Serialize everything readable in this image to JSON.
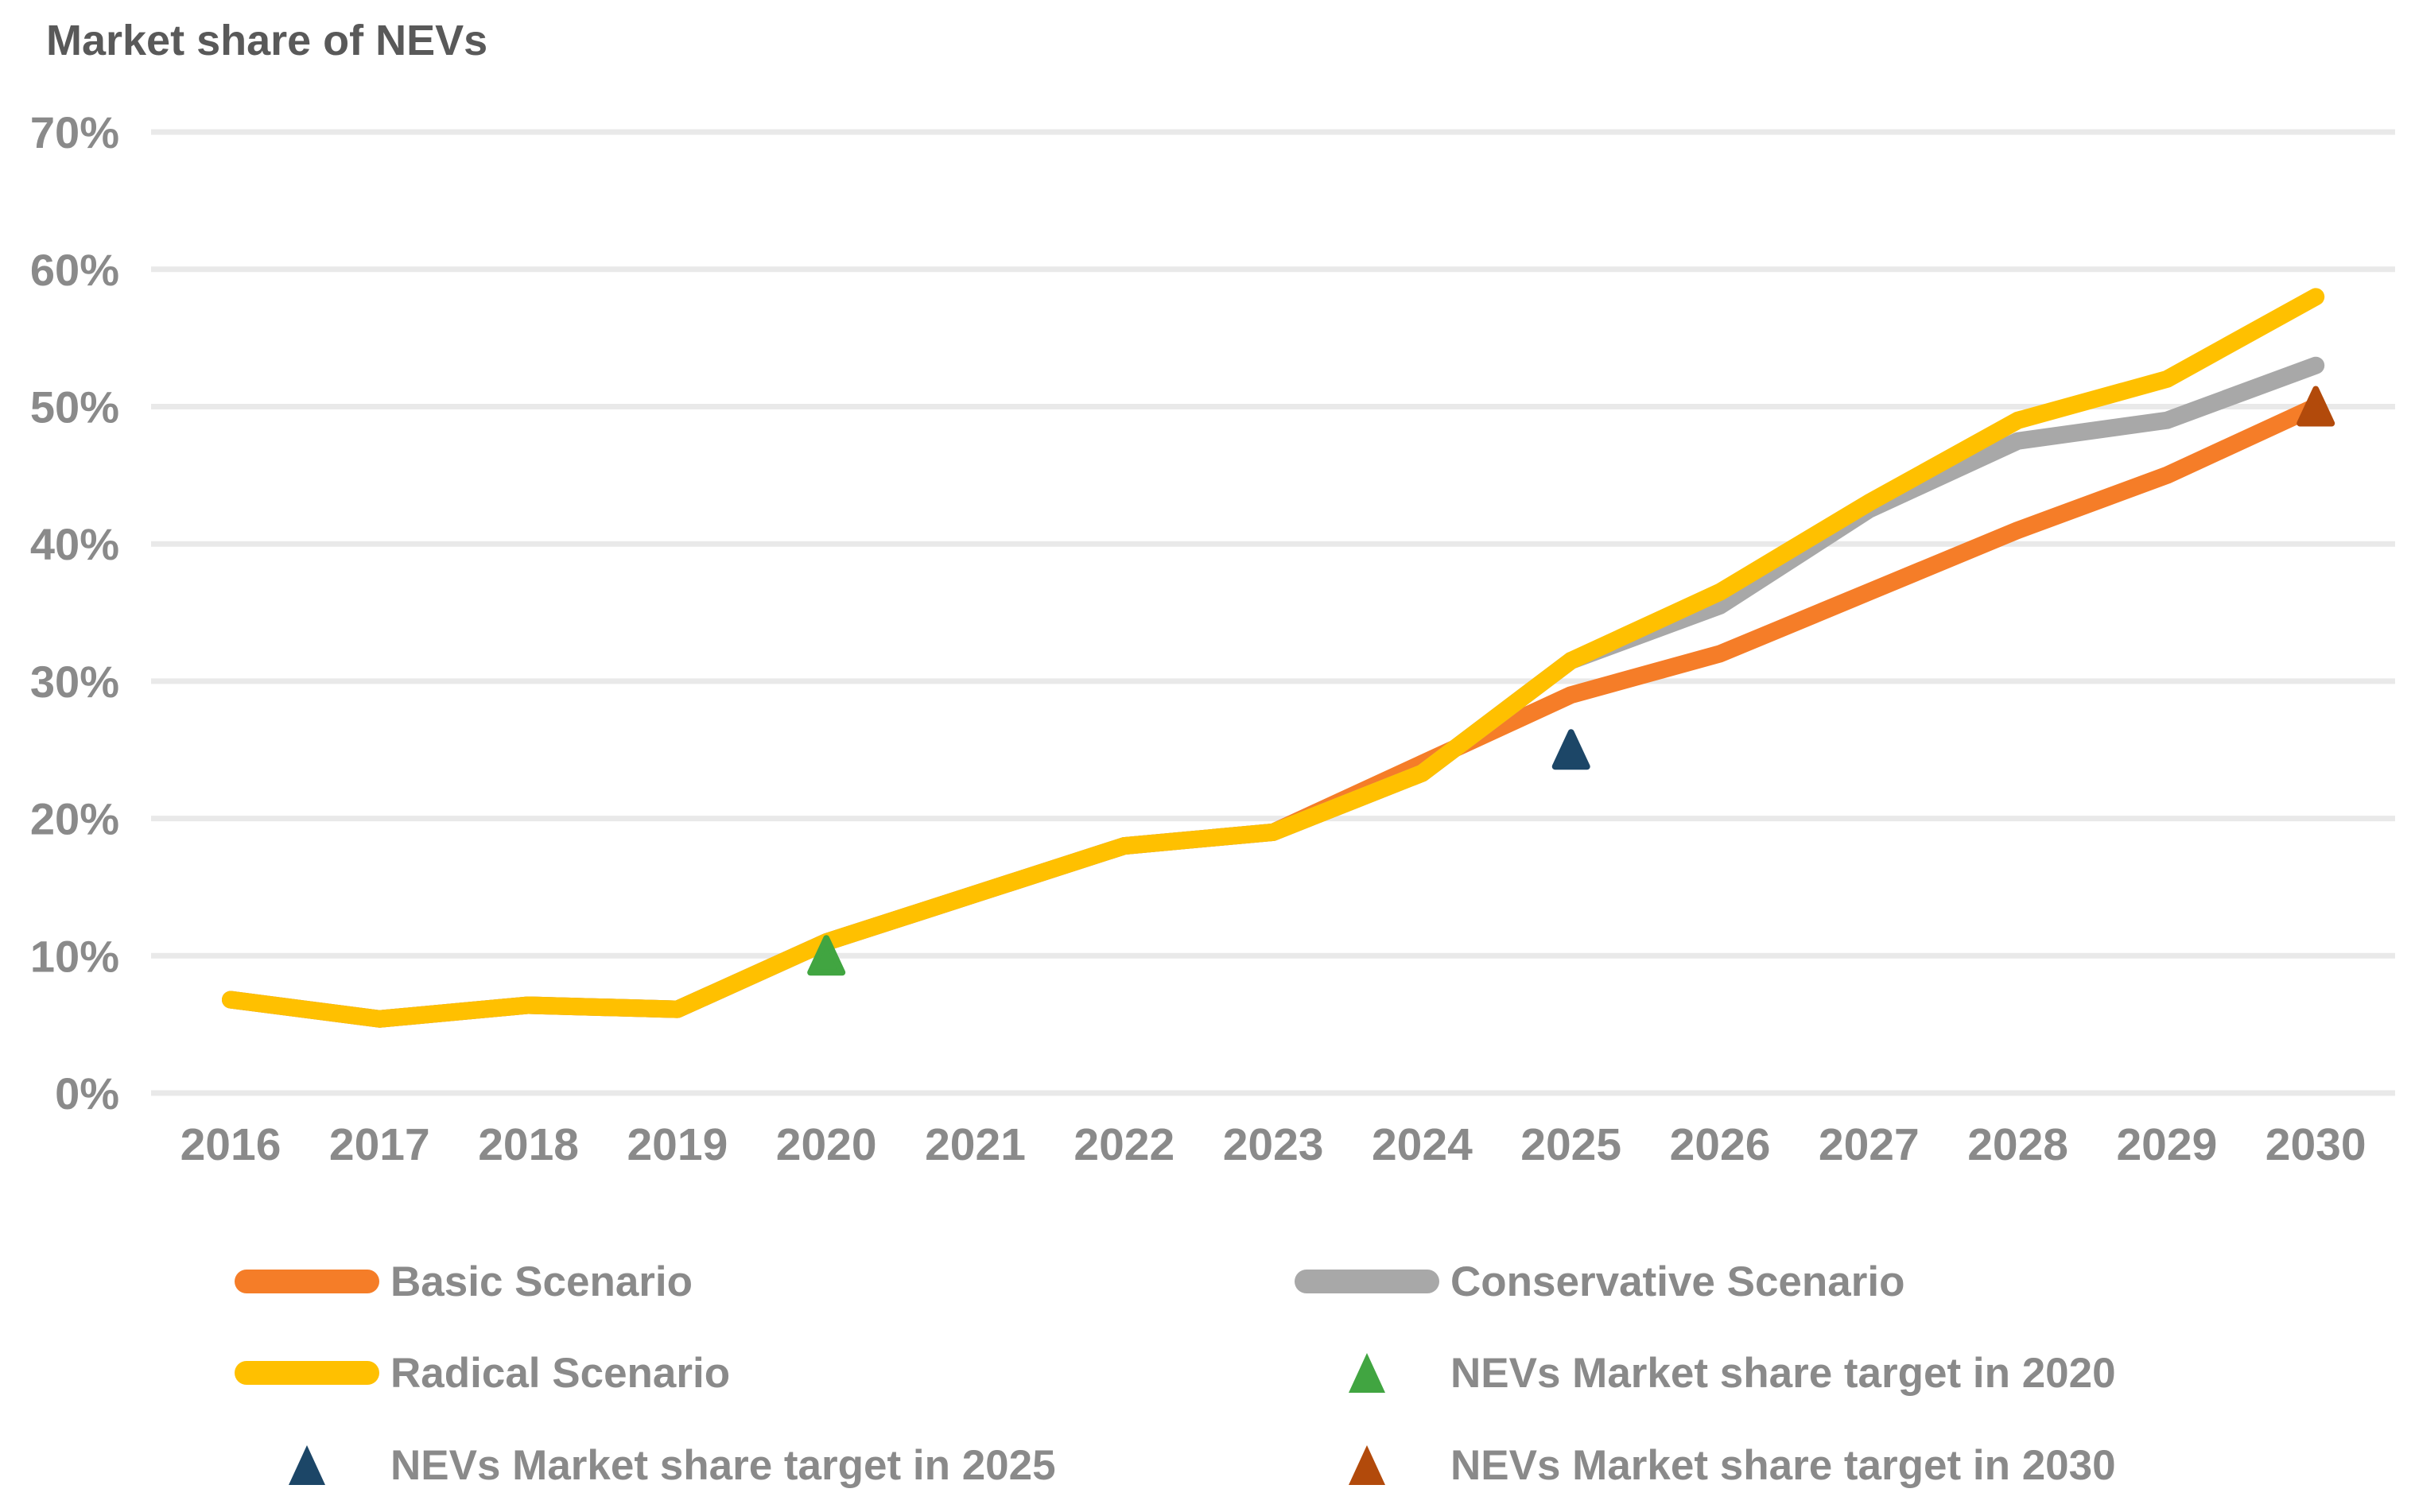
{
  "title": "Market share of NEVs",
  "chart_data": {
    "type": "line",
    "title": "Market share of NEVs",
    "categories": [
      "2016",
      "2017",
      "2018",
      "2019",
      "2020",
      "2021",
      "2022",
      "2023",
      "2024",
      "2025",
      "2026",
      "2027",
      "2028",
      "2029",
      "2030"
    ],
    "y_ticks": [
      "0%",
      "10%",
      "20%",
      "30%",
      "40%",
      "50%",
      "60%",
      "70%"
    ],
    "ylim": [
      0,
      70
    ],
    "grid": true,
    "legend_position": "bottom",
    "series": [
      {
        "name": "Basic Scenario",
        "color": "#F57D28",
        "values": [
          6.8,
          5.4,
          6.4,
          6.1,
          11,
          14.5,
          18,
          19,
          24.0,
          29.0,
          32.0,
          36.5,
          41.0,
          45.0,
          50.0
        ]
      },
      {
        "name": "Conservative Scenario",
        "color": "#A8A8A8",
        "values": [
          6.8,
          5.4,
          6.4,
          6.1,
          11,
          14.5,
          18,
          19,
          23.3,
          31.5,
          35.5,
          42.5,
          47.5,
          49.0,
          53.0
        ]
      },
      {
        "name": "Radical Scenario",
        "color": "#FFC000",
        "values": [
          6.8,
          5.4,
          6.4,
          6.1,
          11,
          14.5,
          18,
          19,
          23.3,
          31.5,
          36.5,
          43.0,
          49.0,
          52.0,
          58.0
        ]
      }
    ],
    "targets": [
      {
        "name": "NEVs Market share target in 2020",
        "color": "#41A541",
        "category": "2020",
        "value": 10
      },
      {
        "name": "NEVs Market share target in 2025",
        "color": "#1C4667",
        "category": "2025",
        "value": 25
      },
      {
        "name": "NEVs Market share target in 2030",
        "color": "#B24A0B",
        "category": "2030",
        "value": 50
      }
    ]
  },
  "colors": {
    "background": "#FFFFFF",
    "gridline": "#E9E9E9",
    "axis_text": "#8A8A8A",
    "title_text": "#595959",
    "legend_text": "#8A8A8A"
  }
}
